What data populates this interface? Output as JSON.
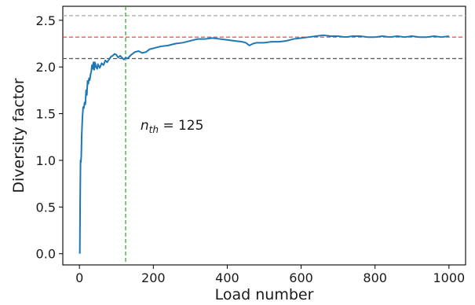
{
  "chart_data": {
    "type": "line",
    "xlabel": "Load number",
    "ylabel": "Diversity factor",
    "xlim": [
      -45,
      1045
    ],
    "ylim": [
      -0.12,
      2.65
    ],
    "xticks": [
      0,
      200,
      400,
      600,
      800,
      1000
    ],
    "yticks": [
      0.0,
      0.5,
      1.0,
      1.5,
      2.0,
      2.5
    ],
    "xtick_labels": [
      "0",
      "200",
      "400",
      "600",
      "800",
      "1000"
    ],
    "ytick_labels": [
      "0.0",
      "0.5",
      "1.0",
      "1.5",
      "2.0",
      "2.5"
    ],
    "grid": false,
    "series": [
      {
        "color": "#1f77b4",
        "x": [
          1,
          2,
          3,
          4,
          5,
          6,
          8,
          10,
          12,
          14,
          16,
          18,
          20,
          22,
          24,
          26,
          28,
          30,
          32,
          34,
          36,
          38,
          40,
          42,
          45,
          48,
          50,
          55,
          60,
          65,
          70,
          75,
          80,
          85,
          90,
          95,
          100,
          105,
          110,
          115,
          120,
          125,
          130,
          135,
          140,
          150,
          160,
          170,
          180,
          190,
          200,
          220,
          240,
          260,
          280,
          300,
          320,
          340,
          360,
          380,
          400,
          420,
          440,
          450,
          460,
          470,
          480,
          500,
          520,
          540,
          560,
          580,
          600,
          620,
          640,
          660,
          680,
          700,
          720,
          740,
          760,
          780,
          800,
          820,
          840,
          860,
          880,
          900,
          920,
          940,
          960,
          980,
          1000
        ],
        "y": [
          0.0,
          0.6,
          1.0,
          0.98,
          1.05,
          1.25,
          1.45,
          1.57,
          1.56,
          1.62,
          1.6,
          1.75,
          1.7,
          1.85,
          1.82,
          1.88,
          1.86,
          1.92,
          1.95,
          2.02,
          1.98,
          2.05,
          1.97,
          2.05,
          2.0,
          1.98,
          2.03,
          1.99,
          2.04,
          2.02,
          2.07,
          2.05,
          2.08,
          2.11,
          2.12,
          2.14,
          2.13,
          2.1,
          2.12,
          2.1,
          2.08,
          2.1,
          2.09,
          2.11,
          2.13,
          2.16,
          2.17,
          2.15,
          2.16,
          2.19,
          2.2,
          2.22,
          2.23,
          2.25,
          2.26,
          2.28,
          2.3,
          2.3,
          2.31,
          2.3,
          2.29,
          2.28,
          2.27,
          2.26,
          2.23,
          2.25,
          2.26,
          2.26,
          2.27,
          2.27,
          2.28,
          2.3,
          2.31,
          2.32,
          2.33,
          2.34,
          2.33,
          2.33,
          2.32,
          2.33,
          2.33,
          2.32,
          2.32,
          2.33,
          2.32,
          2.33,
          2.32,
          2.33,
          2.32,
          2.32,
          2.33,
          2.32,
          2.33
        ]
      }
    ],
    "hlines": [
      {
        "y": 2.55,
        "color": "#aaaaaa",
        "style": "dashed"
      },
      {
        "y": 2.32,
        "color": "#e8382d",
        "style": "dashed"
      },
      {
        "y": 2.09,
        "color": "#555555",
        "style": "dashed"
      }
    ],
    "vlines": [
      {
        "x": 125,
        "color": "#2ca02c",
        "style": "dashed"
      }
    ],
    "annotations": [
      {
        "text_n": "n",
        "text_sub": "th",
        "text_rest": " = 125",
        "x": 165,
        "y": 1.33
      }
    ]
  }
}
